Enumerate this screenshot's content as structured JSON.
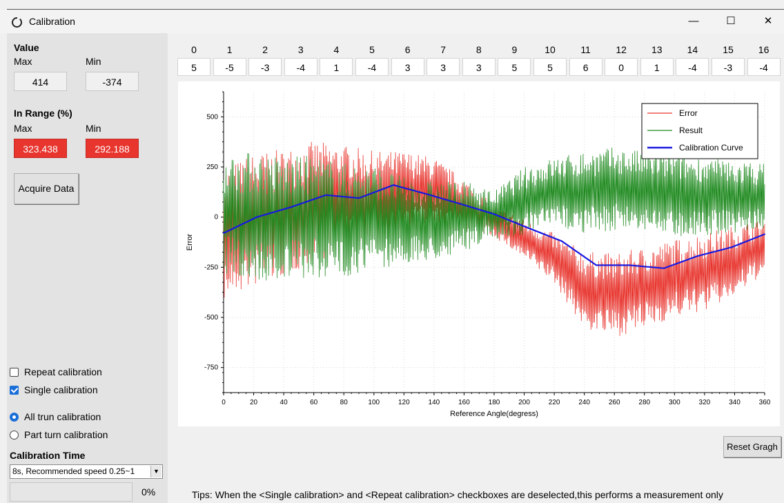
{
  "window": {
    "title": "Calibration",
    "minimize": "—",
    "maximize": "☐",
    "close": "✕"
  },
  "value": {
    "heading": "Value",
    "max_label": "Max",
    "min_label": "Min",
    "max": "414",
    "min": "-374"
  },
  "in_range": {
    "heading": "In Range  (%)",
    "max_label": "Max",
    "min_label": "Min",
    "max": "323.438",
    "min": "292.188"
  },
  "acquire_button": "Acquire Data",
  "channels": {
    "indices": [
      "0",
      "1",
      "2",
      "3",
      "4",
      "5",
      "6",
      "7",
      "8",
      "9",
      "10",
      "11",
      "12",
      "13",
      "14",
      "15",
      "16"
    ],
    "values": [
      "5",
      "-5",
      "-3",
      "-4",
      "1",
      "-4",
      "3",
      "3",
      "3",
      "5",
      "5",
      "6",
      "0",
      "1",
      "-4",
      "-3",
      "-4"
    ]
  },
  "options": {
    "repeat_label": "Repeat calibration",
    "repeat_checked": false,
    "single_label": "Single calibration",
    "single_checked": true,
    "all_turn_label": "All trun calibration",
    "all_turn_selected": true,
    "part_turn_label": "Part turn calibration",
    "part_turn_selected": false
  },
  "calibration_time": {
    "heading": "Calibration Time",
    "selected": "8s, Recommended speed 0.25~1"
  },
  "progress": {
    "value": 0,
    "text": "0%"
  },
  "reset_button": "Reset Gragh",
  "tips": "Tips: When the <Single calibration> and <Repeat calibration> checkboxes are deselected,this performs a measurement only",
  "colors": {
    "error": "#e8352e",
    "result": "#1f8a1f",
    "curve": "#1818e0",
    "accent": "#1a6ed8"
  },
  "chart_data": {
    "type": "line",
    "xlabel": "Reference Angle(degress)",
    "ylabel": "Error",
    "xlim": [
      0,
      360
    ],
    "ylim": [
      -875,
      625
    ],
    "xticks": [
      0,
      20,
      40,
      60,
      80,
      100,
      120,
      140,
      160,
      180,
      200,
      220,
      240,
      260,
      280,
      300,
      320,
      340,
      360
    ],
    "yticks": [
      500,
      250,
      0,
      -250,
      -500,
      -750
    ],
    "grid": true,
    "legend_position": "top-right",
    "series": [
      {
        "name": "Error",
        "color": "#e8352e",
        "x": [
          0,
          20,
          40,
          60,
          80,
          100,
          120,
          140,
          160,
          180,
          200,
          220,
          240,
          260,
          280,
          300,
          320,
          340,
          360
        ],
        "high": [
          250,
          320,
          340,
          380,
          360,
          330,
          330,
          300,
          190,
          60,
          -10,
          -80,
          -170,
          -180,
          -150,
          -110,
          -80,
          -40,
          -10
        ],
        "low": [
          -420,
          -350,
          -300,
          -230,
          -160,
          -150,
          -80,
          -60,
          -70,
          -100,
          -210,
          -330,
          -560,
          -600,
          -560,
          -500,
          -470,
          -400,
          -280
        ]
      },
      {
        "name": "Result",
        "color": "#1f8a1f",
        "x": [
          0,
          20,
          40,
          60,
          80,
          100,
          120,
          140,
          160,
          180,
          200,
          220,
          240,
          260,
          280,
          300,
          320,
          340,
          360
        ],
        "high": [
          310,
          330,
          300,
          310,
          270,
          260,
          200,
          180,
          180,
          130,
          250,
          300,
          330,
          350,
          330,
          320,
          300,
          280,
          270
        ],
        "low": [
          -280,
          -330,
          -320,
          -310,
          -300,
          -260,
          -240,
          -220,
          -170,
          -110,
          -90,
          -50,
          -80,
          -70,
          -70,
          -100,
          -90,
          -80,
          -70
        ]
      },
      {
        "name": "Calibration Curve",
        "color": "#1818e0",
        "x": [
          0,
          22,
          45,
          68,
          90,
          113,
          135,
          158,
          180,
          203,
          225,
          248,
          270,
          293,
          315,
          338,
          360
        ],
        "y": [
          -80,
          0,
          50,
          110,
          95,
          160,
          115,
          65,
          15,
          -55,
          -120,
          -240,
          -240,
          -255,
          -195,
          -150,
          -85
        ]
      }
    ]
  }
}
